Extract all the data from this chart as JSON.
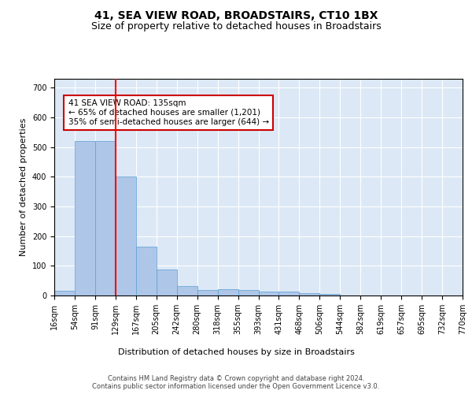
{
  "title": "41, SEA VIEW ROAD, BROADSTAIRS, CT10 1BX",
  "subtitle": "Size of property relative to detached houses in Broadstairs",
  "xlabel": "Distribution of detached houses by size in Broadstairs",
  "ylabel": "Number of detached properties",
  "bar_values": [
    15,
    520,
    520,
    400,
    165,
    88,
    32,
    19,
    21,
    19,
    12,
    13,
    8,
    5,
    0,
    0,
    0,
    0,
    0,
    0
  ],
  "bin_labels": [
    "16sqm",
    "54sqm",
    "91sqm",
    "129sqm",
    "167sqm",
    "205sqm",
    "242sqm",
    "280sqm",
    "318sqm",
    "355sqm",
    "393sqm",
    "431sqm",
    "468sqm",
    "506sqm",
    "544sqm",
    "582sqm",
    "619sqm",
    "657sqm",
    "695sqm",
    "732sqm",
    "770sqm"
  ],
  "bar_color": "#aec6e8",
  "bar_edge_color": "#5a9fd4",
  "annotation_text": "41 SEA VIEW ROAD: 135sqm\n← 65% of detached houses are smaller (1,201)\n35% of semi-detached houses are larger (644) →",
  "annotation_box_color": "#ffffff",
  "annotation_box_edge": "#cc0000",
  "red_line_bin": 2,
  "ylim": [
    0,
    730
  ],
  "yticks": [
    0,
    100,
    200,
    300,
    400,
    500,
    600,
    700
  ],
  "footer_text": "Contains HM Land Registry data © Crown copyright and database right 2024.\nContains public sector information licensed under the Open Government Licence v3.0.",
  "axes_background": "#dce8f5",
  "title_fontsize": 10,
  "subtitle_fontsize": 9,
  "xlabel_fontsize": 8,
  "ylabel_fontsize": 8,
  "tick_fontsize": 7,
  "footer_fontsize": 6,
  "annot_fontsize": 7.5
}
